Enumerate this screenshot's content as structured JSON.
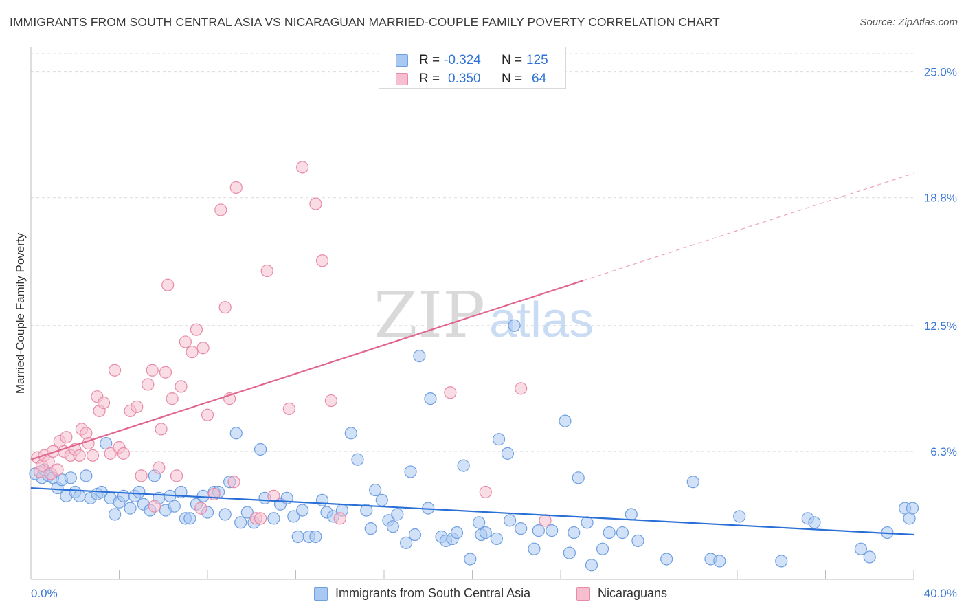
{
  "title": "IMMIGRANTS FROM SOUTH CENTRAL ASIA VS NICARAGUAN MARRIED-COUPLE FAMILY POVERTY CORRELATION CHART",
  "source": "Source: ZipAtlas.com",
  "watermark": {
    "zip": "ZIP",
    "atlas": "atlas"
  },
  "legend": {
    "r_label": "R =",
    "n_label": "N =",
    "rows": [
      {
        "r": "-0.324",
        "n": "125",
        "fill": "#a9c8f2",
        "stroke": "#6f9fe0"
      },
      {
        "r": "0.350",
        "n": "64",
        "fill": "#f6bfd0",
        "stroke": "#e88aa8"
      }
    ]
  },
  "chart_data": {
    "type": "scatter",
    "title": "IMMIGRANTS FROM SOUTH CENTRAL ASIA VS NICARAGUAN MARRIED-COUPLE FAMILY POVERTY CORRELATION CHART",
    "xlabel": "",
    "ylabel": "Married-Couple Family Poverty",
    "xlim": [
      0,
      40
    ],
    "ylim": [
      0,
      25.9
    ],
    "x_tick_labels": [
      "0.0%",
      "40.0%"
    ],
    "y_ticks": [
      6.3,
      12.5,
      18.8,
      25.0
    ],
    "y_tick_labels": [
      "6.3%",
      "12.5%",
      "18.8%",
      "25.0%"
    ],
    "grid": true,
    "series": [
      {
        "name": "Immigrants from South Central Asia",
        "color": "#6f9fe0",
        "fill": "#a9c8f2",
        "R": -0.324,
        "N": 125,
        "trend": {
          "x0": 0,
          "y0": 4.5,
          "x1": 40,
          "y1": 2.2,
          "solid_to": 40
        },
        "points": [
          [
            0.2,
            5.2
          ],
          [
            0.5,
            5.0
          ],
          [
            0.6,
            5.4
          ],
          [
            0.8,
            5.1
          ],
          [
            1.0,
            5.0
          ],
          [
            1.2,
            4.5
          ],
          [
            1.4,
            4.9
          ],
          [
            1.6,
            4.1
          ],
          [
            1.8,
            5.0
          ],
          [
            2.0,
            4.3
          ],
          [
            2.2,
            4.1
          ],
          [
            2.5,
            5.1
          ],
          [
            2.7,
            4.0
          ],
          [
            3.0,
            4.2
          ],
          [
            3.2,
            4.3
          ],
          [
            3.4,
            6.7
          ],
          [
            3.6,
            4.0
          ],
          [
            3.8,
            3.2
          ],
          [
            4.0,
            3.8
          ],
          [
            4.2,
            4.1
          ],
          [
            4.5,
            3.5
          ],
          [
            4.7,
            4.1
          ],
          [
            4.9,
            4.3
          ],
          [
            5.1,
            3.7
          ],
          [
            5.4,
            3.4
          ],
          [
            5.6,
            5.1
          ],
          [
            5.8,
            4.0
          ],
          [
            6.1,
            3.4
          ],
          [
            6.3,
            4.1
          ],
          [
            6.5,
            3.6
          ],
          [
            6.8,
            4.3
          ],
          [
            7.0,
            3.0
          ],
          [
            7.2,
            3.0
          ],
          [
            7.5,
            3.7
          ],
          [
            7.8,
            4.1
          ],
          [
            8.0,
            3.3
          ],
          [
            8.3,
            4.3
          ],
          [
            8.5,
            4.3
          ],
          [
            8.8,
            3.2
          ],
          [
            9.0,
            4.8
          ],
          [
            9.3,
            7.2
          ],
          [
            9.5,
            2.8
          ],
          [
            9.8,
            3.3
          ],
          [
            10.1,
            2.8
          ],
          [
            10.4,
            6.4
          ],
          [
            10.6,
            4.0
          ],
          [
            11.0,
            3.0
          ],
          [
            11.3,
            3.7
          ],
          [
            11.6,
            4.0
          ],
          [
            11.9,
            3.1
          ],
          [
            12.1,
            2.1
          ],
          [
            12.3,
            3.4
          ],
          [
            12.6,
            2.1
          ],
          [
            12.9,
            2.1
          ],
          [
            13.2,
            3.9
          ],
          [
            13.4,
            3.3
          ],
          [
            13.7,
            3.1
          ],
          [
            14.1,
            3.4
          ],
          [
            14.5,
            7.2
          ],
          [
            14.8,
            5.9
          ],
          [
            15.2,
            3.4
          ],
          [
            15.4,
            2.5
          ],
          [
            15.6,
            4.4
          ],
          [
            15.9,
            3.9
          ],
          [
            16.2,
            2.9
          ],
          [
            16.4,
            2.6
          ],
          [
            16.6,
            3.2
          ],
          [
            17.0,
            1.8
          ],
          [
            17.2,
            5.3
          ],
          [
            17.4,
            2.2
          ],
          [
            17.6,
            11.0
          ],
          [
            18.0,
            3.5
          ],
          [
            18.1,
            8.9
          ],
          [
            18.6,
            2.1
          ],
          [
            18.8,
            1.9
          ],
          [
            19.1,
            2.0
          ],
          [
            19.3,
            2.3
          ],
          [
            19.6,
            5.6
          ],
          [
            19.9,
            1.0
          ],
          [
            20.3,
            2.8
          ],
          [
            20.4,
            2.2
          ],
          [
            20.6,
            2.3
          ],
          [
            21.1,
            2.0
          ],
          [
            21.2,
            6.9
          ],
          [
            21.6,
            6.2
          ],
          [
            21.7,
            2.9
          ],
          [
            21.9,
            12.5
          ],
          [
            22.2,
            2.5
          ],
          [
            22.8,
            1.5
          ],
          [
            23.0,
            2.4
          ],
          [
            23.6,
            2.4
          ],
          [
            24.2,
            7.8
          ],
          [
            24.4,
            1.3
          ],
          [
            24.6,
            2.3
          ],
          [
            24.8,
            5.0
          ],
          [
            25.2,
            2.8
          ],
          [
            25.4,
            0.7
          ],
          [
            25.9,
            1.5
          ],
          [
            26.2,
            2.3
          ],
          [
            26.8,
            2.3
          ],
          [
            27.2,
            3.2
          ],
          [
            27.5,
            1.9
          ],
          [
            28.8,
            1.0
          ],
          [
            30.0,
            4.8
          ],
          [
            30.8,
            1.0
          ],
          [
            31.2,
            0.9
          ],
          [
            32.1,
            3.1
          ],
          [
            34.0,
            0.9
          ],
          [
            35.2,
            3.0
          ],
          [
            35.5,
            2.8
          ],
          [
            37.6,
            1.5
          ],
          [
            38.0,
            1.1
          ],
          [
            38.8,
            2.3
          ],
          [
            39.6,
            3.5
          ],
          [
            39.8,
            3.0
          ],
          [
            41.5,
            3.5
          ]
        ]
      },
      {
        "name": "Nicaraguans",
        "color": "#e88aa8",
        "fill": "#f6bfd0",
        "R": 0.35,
        "N": 64,
        "trend": {
          "x0": 0,
          "y0": 5.9,
          "x1": 40,
          "y1": 20.0,
          "solid_to": 25
        },
        "points": [
          [
            0.3,
            6.0
          ],
          [
            0.4,
            5.3
          ],
          [
            0.5,
            5.6
          ],
          [
            0.6,
            6.1
          ],
          [
            0.8,
            5.8
          ],
          [
            0.9,
            5.2
          ],
          [
            1.0,
            6.3
          ],
          [
            1.2,
            5.4
          ],
          [
            1.3,
            6.8
          ],
          [
            1.5,
            6.3
          ],
          [
            1.6,
            7.0
          ],
          [
            1.8,
            6.1
          ],
          [
            2.0,
            6.4
          ],
          [
            2.2,
            6.1
          ],
          [
            2.3,
            7.4
          ],
          [
            2.5,
            7.2
          ],
          [
            2.6,
            6.7
          ],
          [
            2.8,
            6.1
          ],
          [
            3.0,
            9.0
          ],
          [
            3.1,
            8.3
          ],
          [
            3.3,
            8.7
          ],
          [
            3.6,
            6.2
          ],
          [
            3.8,
            10.3
          ],
          [
            4.0,
            6.5
          ],
          [
            4.2,
            6.2
          ],
          [
            4.5,
            8.3
          ],
          [
            4.8,
            8.5
          ],
          [
            5.0,
            5.1
          ],
          [
            5.3,
            9.6
          ],
          [
            5.5,
            10.3
          ],
          [
            5.6,
            3.6
          ],
          [
            5.8,
            5.5
          ],
          [
            5.9,
            7.4
          ],
          [
            6.1,
            10.2
          ],
          [
            6.2,
            14.5
          ],
          [
            6.4,
            8.9
          ],
          [
            6.6,
            5.1
          ],
          [
            6.8,
            9.5
          ],
          [
            7.0,
            11.7
          ],
          [
            7.3,
            11.2
          ],
          [
            7.5,
            12.3
          ],
          [
            7.7,
            3.5
          ],
          [
            7.8,
            11.4
          ],
          [
            8.0,
            8.1
          ],
          [
            8.3,
            4.2
          ],
          [
            8.6,
            18.2
          ],
          [
            8.8,
            13.4
          ],
          [
            9.0,
            8.9
          ],
          [
            9.2,
            4.8
          ],
          [
            9.3,
            19.3
          ],
          [
            10.2,
            3.0
          ],
          [
            10.4,
            3.0
          ],
          [
            10.7,
            15.2
          ],
          [
            11.0,
            4.1
          ],
          [
            11.7,
            8.4
          ],
          [
            12.3,
            20.3
          ],
          [
            12.9,
            18.5
          ],
          [
            13.2,
            15.7
          ],
          [
            13.6,
            8.8
          ],
          [
            14.0,
            3.0
          ],
          [
            19.0,
            9.2
          ],
          [
            20.6,
            4.3
          ],
          [
            22.2,
            9.4
          ],
          [
            23.3,
            2.9
          ]
        ]
      }
    ]
  },
  "bottom_legend": [
    {
      "label": "Immigrants from South Central Asia",
      "fill": "#a9c8f2",
      "stroke": "#6f9fe0"
    },
    {
      "label": "Nicaraguans",
      "fill": "#f6bfd0",
      "stroke": "#e88aa8"
    }
  ]
}
